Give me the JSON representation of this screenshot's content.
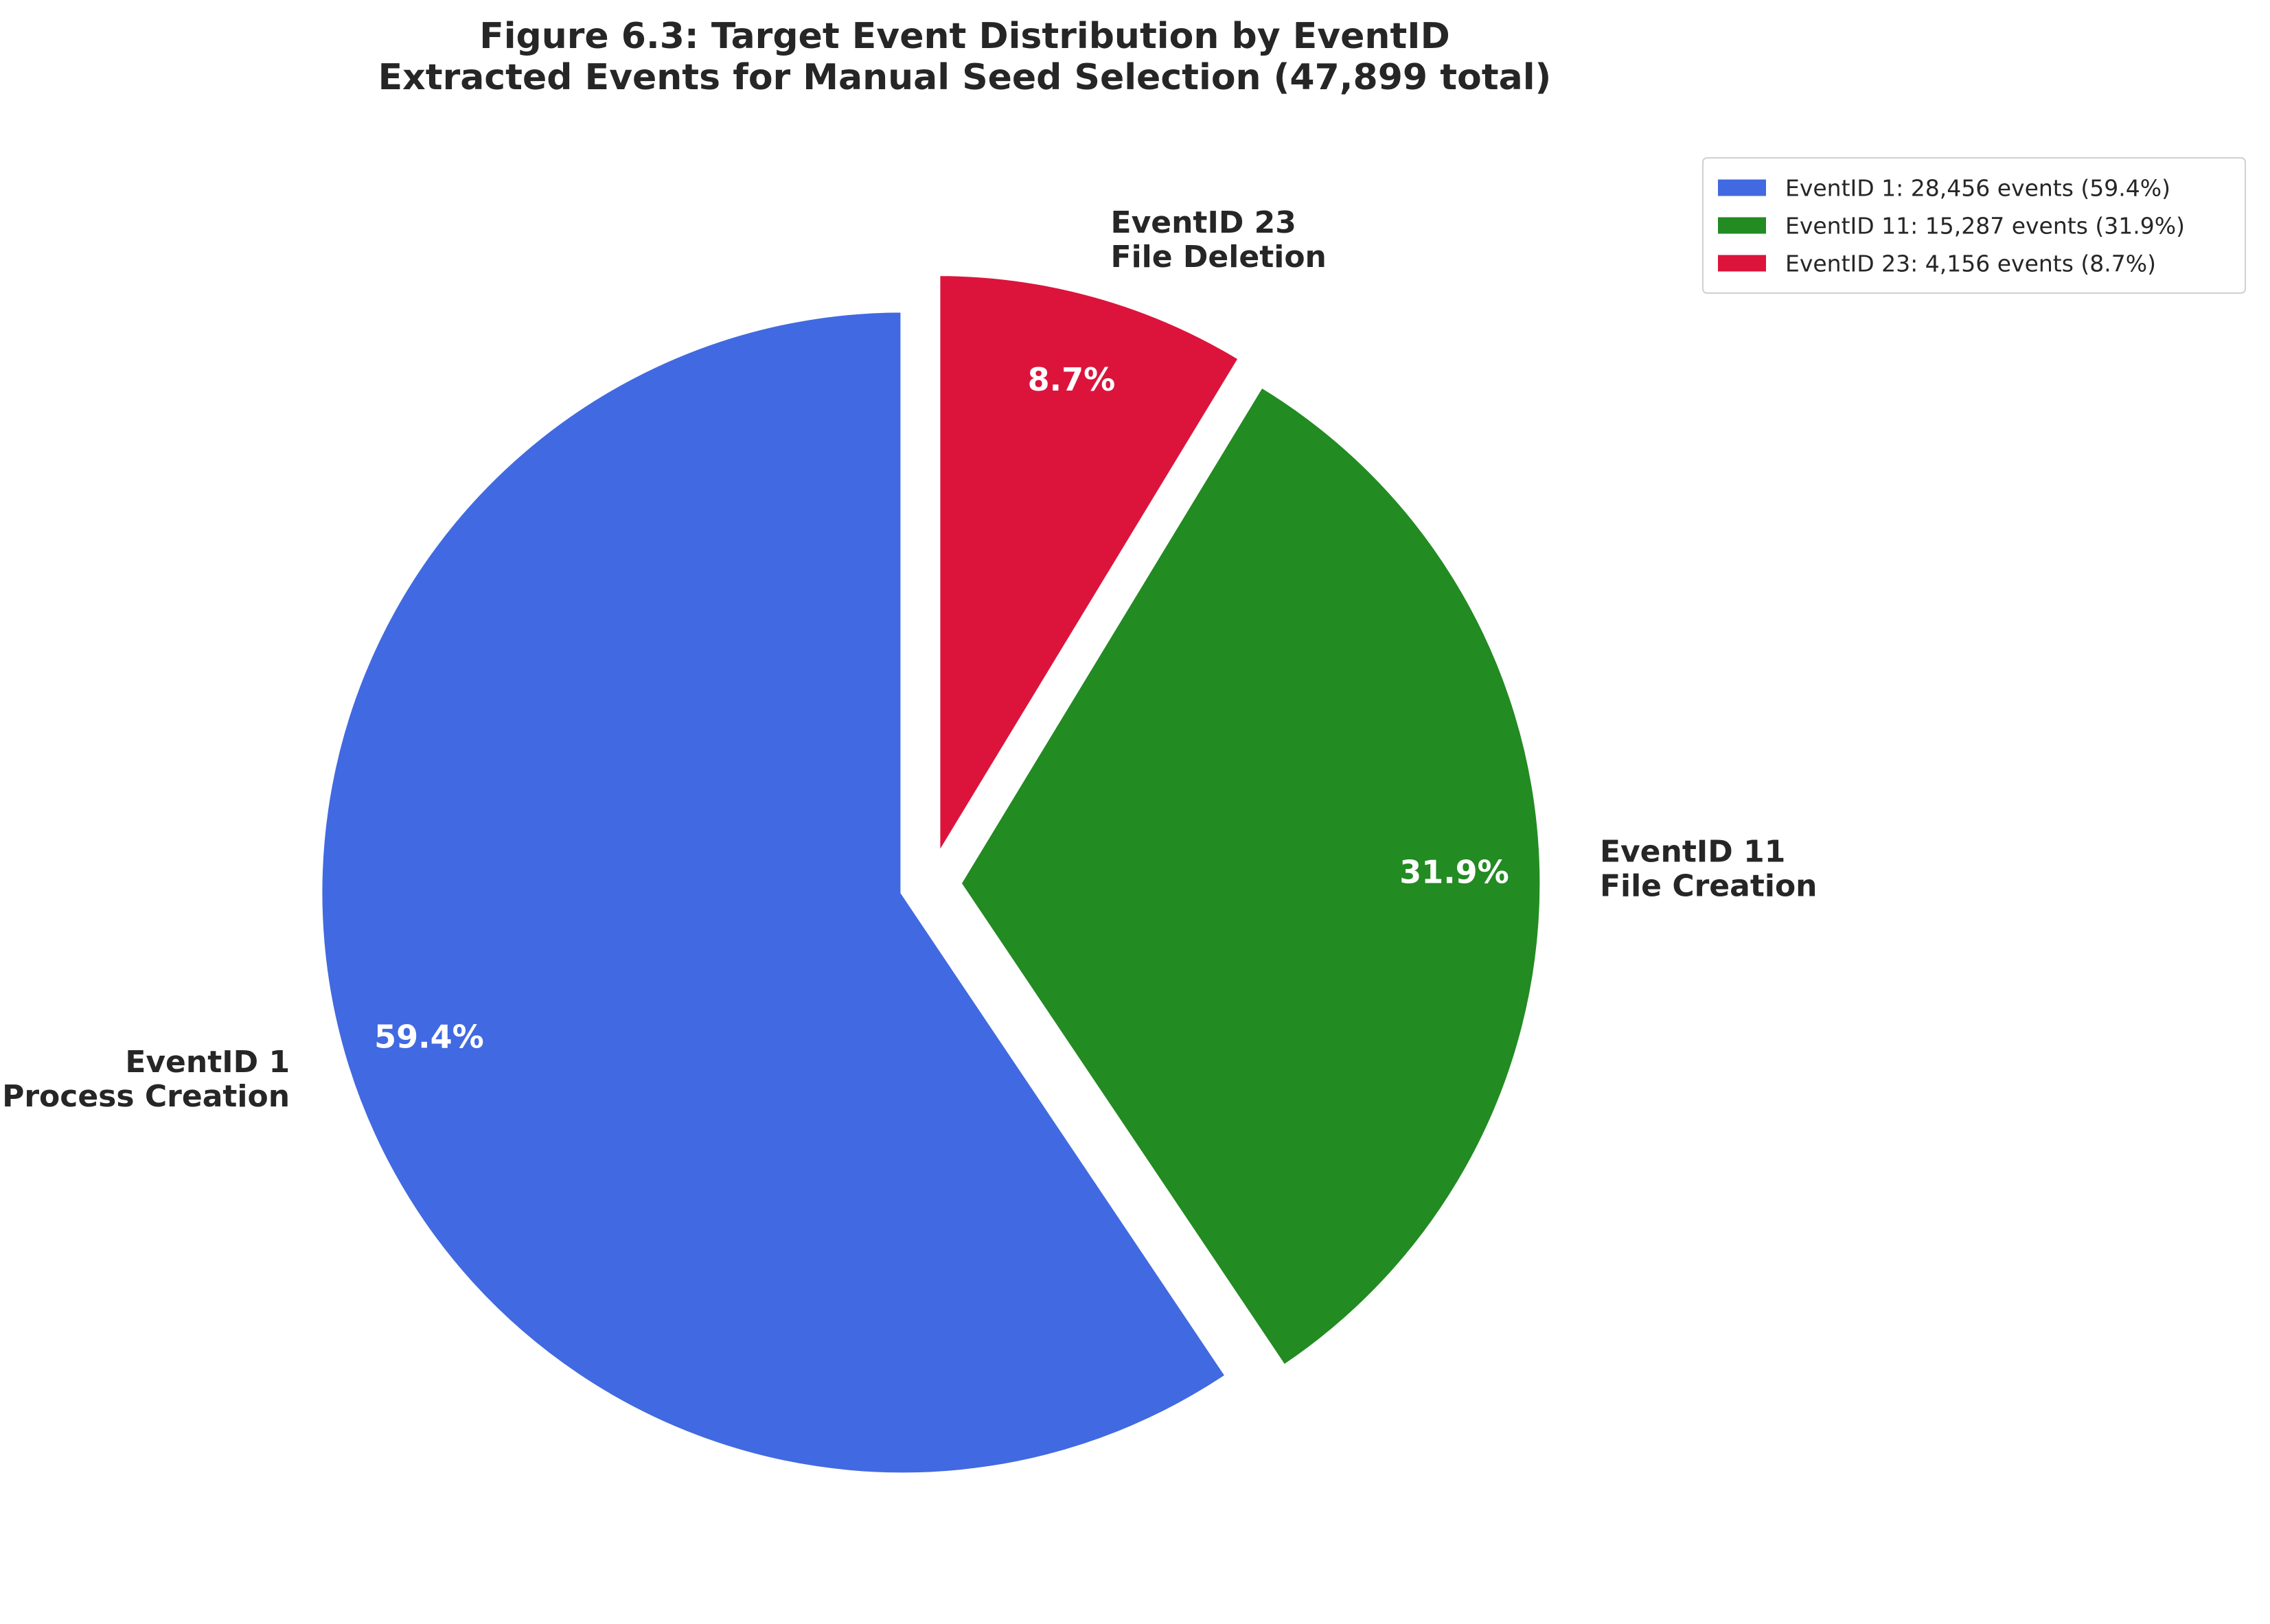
{
  "title": {
    "line1": "Figure 6.3: Target Event Distribution by EventID",
    "line2": "Extracted Events for Manual Seed Selection (47,899 total)"
  },
  "chart_data": {
    "type": "pie",
    "start_angle_deg": 90,
    "direction": "counterclockwise",
    "legend_position": "top-right",
    "slices": [
      {
        "label_line1": "EventID 1",
        "label_line2": "Process Creation",
        "count": 28456,
        "percent": 59.4,
        "percent_label": "59.4%",
        "legend": "EventID 1: 28,456 events (59.4%)",
        "color": "#4169e1",
        "explode": 0.05
      },
      {
        "label_line1": "EventID 11",
        "label_line2": "File Creation",
        "count": 15287,
        "percent": 31.9,
        "percent_label": "31.9%",
        "legend": "EventID 11: 15,287 events (31.9%)",
        "color": "#228b22",
        "explode": 0.05
      },
      {
        "label_line1": "EventID 23",
        "label_line2": "File Deletion",
        "count": 4156,
        "percent": 8.7,
        "percent_label": "8.7%",
        "legend": "EventID 23: 4,156 events (8.7%)",
        "color": "#dc143c",
        "explode": 0.05
      }
    ]
  }
}
